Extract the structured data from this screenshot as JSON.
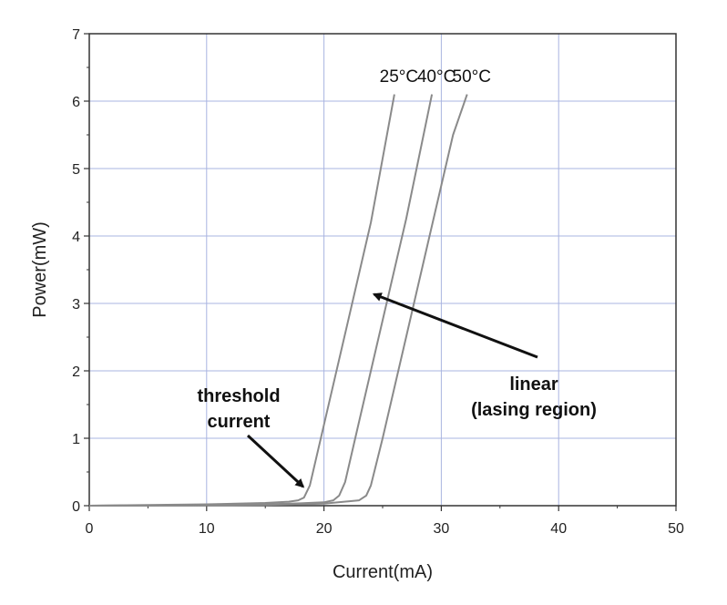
{
  "chart_data": {
    "type": "line",
    "title": "",
    "xlabel": "Current(mA)",
    "ylabel": "Power(mW)",
    "xlim": [
      0,
      50
    ],
    "ylim": [
      0,
      7
    ],
    "xticks": [
      0,
      10,
      20,
      30,
      40,
      50
    ],
    "yticks": [
      0,
      1,
      2,
      3,
      4,
      5,
      6,
      7
    ],
    "grid": true,
    "line_color": "#8a8a8a",
    "grid_color": "#a9b4e0",
    "series": [
      {
        "name": "25°C",
        "points": [
          [
            0,
            0
          ],
          [
            5,
            0.01
          ],
          [
            10,
            0.02
          ],
          [
            15,
            0.04
          ],
          [
            17,
            0.06
          ],
          [
            17.8,
            0.08
          ],
          [
            18.3,
            0.12
          ],
          [
            18.8,
            0.3
          ],
          [
            20,
            1.2
          ],
          [
            22,
            2.7
          ],
          [
            24,
            4.2
          ],
          [
            26,
            6.1
          ]
        ]
      },
      {
        "name": "40°C",
        "points": [
          [
            0,
            0
          ],
          [
            5,
            0.005
          ],
          [
            10,
            0.01
          ],
          [
            15,
            0.02
          ],
          [
            18,
            0.035
          ],
          [
            20,
            0.05
          ],
          [
            20.8,
            0.08
          ],
          [
            21.3,
            0.15
          ],
          [
            21.8,
            0.35
          ],
          [
            23,
            1.25
          ],
          [
            25,
            2.75
          ],
          [
            27,
            4.25
          ],
          [
            29.2,
            6.1
          ]
        ]
      },
      {
        "name": "50°C",
        "points": [
          [
            0,
            0
          ],
          [
            5,
            0.003
          ],
          [
            10,
            0.006
          ],
          [
            15,
            0.01
          ],
          [
            20,
            0.03
          ],
          [
            23,
            0.08
          ],
          [
            23.6,
            0.15
          ],
          [
            24,
            0.3
          ],
          [
            25,
            1.0
          ],
          [
            27,
            2.5
          ],
          [
            29,
            4.0
          ],
          [
            31,
            5.5
          ],
          [
            32.2,
            6.1
          ]
        ]
      }
    ],
    "annotations": [
      {
        "text_lines": [
          "threshold",
          "current"
        ],
        "target": [
          18.3,
          0.12
        ]
      },
      {
        "text_lines": [
          "linear",
          "(lasing region)"
        ],
        "target": [
          28,
          3.0
        ]
      }
    ]
  }
}
